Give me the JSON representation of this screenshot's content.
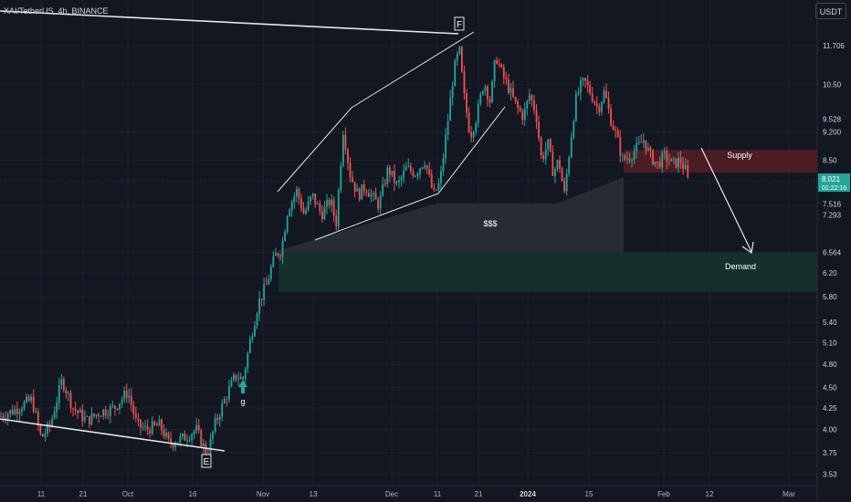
{
  "header": {
    "symbol": "XAI/TetherUS, 4h, BINANCE",
    "currency": "USDT"
  },
  "chart_data": {
    "type": "candlestick",
    "x_ticks": [
      "11",
      "21",
      "Oct",
      "16",
      "Nov",
      "13",
      "Dec",
      "11",
      "21",
      "2024",
      "15",
      "Feb",
      "12",
      "Mar"
    ],
    "y_ticks": [
      3.53,
      3.75,
      4.0,
      4.25,
      4.5,
      4.8,
      5.1,
      5.4,
      5.8,
      6.2,
      6.564,
      7.293,
      7.5,
      7.516,
      8.5,
      9.2,
      9.522,
      9.528,
      10.5,
      11.706
    ],
    "y_scale": "log",
    "ylim": [
      3.42,
      13.3
    ],
    "price_labels": {
      "last_price": "8.021",
      "countdown": "01:22:16",
      "marked": [
        "11.706",
        "9.528",
        "9.522",
        "9.200",
        "7.516",
        "7.500",
        "7.293",
        "6.564"
      ]
    },
    "price_path": [
      [
        0,
        4.15
      ],
      [
        15,
        4.22
      ],
      [
        35,
        4.35
      ],
      [
        45,
        3.9
      ],
      [
        55,
        4.05
      ],
      [
        68,
        4.6
      ],
      [
        80,
        4.25
      ],
      [
        95,
        4.1
      ],
      [
        110,
        4.2
      ],
      [
        125,
        4.25
      ],
      [
        140,
        4.45
      ],
      [
        150,
        4.05
      ],
      [
        160,
        4.0
      ],
      [
        175,
        4.05
      ],
      [
        185,
        3.85
      ],
      [
        200,
        3.9
      ],
      [
        215,
        4.0
      ],
      [
        227,
        3.72
      ],
      [
        235,
        4.05
      ],
      [
        248,
        4.4
      ],
      [
        258,
        4.65
      ],
      [
        266,
        4.6
      ],
      [
        275,
        5.2
      ],
      [
        283,
        5.7
      ],
      [
        292,
        6.0
      ],
      [
        298,
        6.35
      ],
      [
        303,
        6.55
      ],
      [
        308,
        6.6
      ],
      [
        315,
        7.4
      ],
      [
        325,
        7.8
      ],
      [
        333,
        7.3
      ],
      [
        342,
        7.7
      ],
      [
        352,
        7.3
      ],
      [
        362,
        7.6
      ],
      [
        368,
        7.1
      ],
      [
        376,
        9.3
      ],
      [
        383,
        8.2
      ],
      [
        392,
        7.7
      ],
      [
        400,
        7.9
      ],
      [
        410,
        7.6
      ],
      [
        415,
        7.5
      ],
      [
        425,
        8.3
      ],
      [
        435,
        7.9
      ],
      [
        445,
        8.3
      ],
      [
        455,
        8.2
      ],
      [
        465,
        8.5
      ],
      [
        475,
        7.7
      ],
      [
        482,
        8.0
      ],
      [
        490,
        9.4
      ],
      [
        497,
        10.9
      ],
      [
        503,
        11.6
      ],
      [
        508,
        10.2
      ],
      [
        515,
        9.1
      ],
      [
        522,
        9.6
      ],
      [
        530,
        10.6
      ],
      [
        537,
        10.0
      ],
      [
        543,
        11.4
      ],
      [
        550,
        10.8
      ],
      [
        557,
        10.4
      ],
      [
        565,
        9.9
      ],
      [
        573,
        9.6
      ],
      [
        580,
        10.2
      ],
      [
        587,
        9.7
      ],
      [
        593,
        8.5
      ],
      [
        600,
        8.9
      ],
      [
        606,
        8.2
      ],
      [
        612,
        8.5
      ],
      [
        618,
        7.7
      ],
      [
        624,
        8.8
      ],
      [
        630,
        10.0
      ],
      [
        635,
        10.4
      ],
      [
        640,
        10.6
      ],
      [
        648,
        10.2
      ],
      [
        655,
        9.8
      ],
      [
        662,
        10.3
      ],
      [
        668,
        9.6
      ],
      [
        675,
        9.1
      ],
      [
        682,
        8.5
      ],
      [
        690,
        8.6
      ],
      [
        698,
        8.8
      ],
      [
        705,
        9.0
      ],
      [
        712,
        8.6
      ],
      [
        720,
        8.4
      ],
      [
        728,
        8.6
      ],
      [
        737,
        8.4
      ],
      [
        745,
        8.5
      ],
      [
        752,
        8.2
      ],
      [
        755,
        7.8
      ]
    ],
    "annotations": {
      "point_f": "F",
      "point_e": "E",
      "point_g": "g",
      "liquidity": "$$$",
      "supply_zone": {
        "label": "Supply",
        "low": 8.21,
        "high": 8.75
      },
      "demand_zone": {
        "label": "Demand",
        "low": 5.88,
        "high": 6.564
      }
    },
    "colors": {
      "up": "#26a69a",
      "down": "#ef5350",
      "supply": "#4a1d25",
      "demand": "#13302a",
      "background": "#131722"
    }
  }
}
